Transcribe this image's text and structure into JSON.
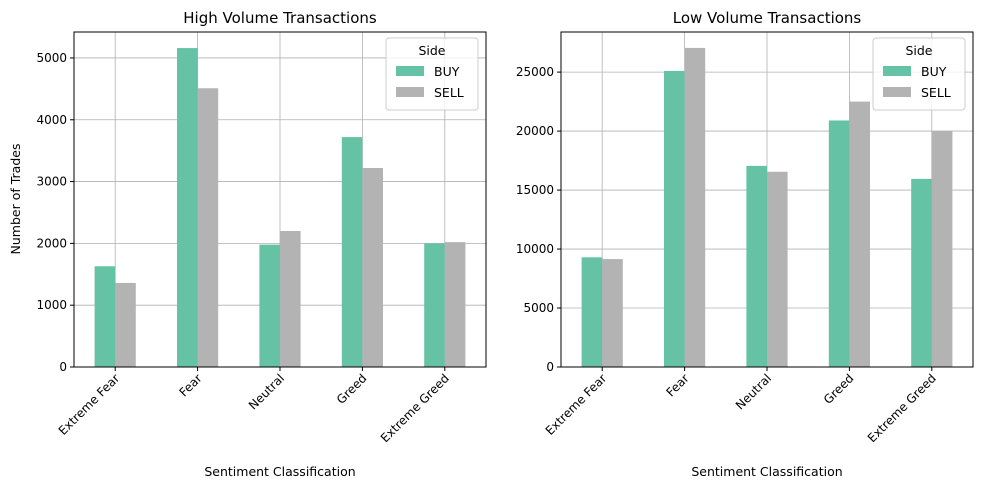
{
  "chart_data": [
    {
      "type": "bar",
      "title": "High Volume Transactions",
      "xlabel": "Sentiment Classification",
      "ylabel": "Number of Trades",
      "categories": [
        "Extreme Fear",
        "Fear",
        "Neutral",
        "Greed",
        "Extreme Greed"
      ],
      "series": [
        {
          "name": "BUY",
          "values": [
            1630,
            5160,
            1980,
            3720,
            2000
          ]
        },
        {
          "name": "SELL",
          "values": [
            1360,
            4510,
            2200,
            3220,
            2020
          ]
        }
      ],
      "ylim": [
        0,
        5420
      ],
      "yticks": [
        0,
        1000,
        2000,
        3000,
        4000,
        5000
      ],
      "grid": true,
      "legend": {
        "title": "Side",
        "location": "top-right"
      }
    },
    {
      "type": "bar",
      "title": "Low Volume Transactions",
      "xlabel": "Sentiment Classification",
      "ylabel": "",
      "categories": [
        "Extreme Fear",
        "Fear",
        "Neutral",
        "Greed",
        "Extreme Greed"
      ],
      "series": [
        {
          "name": "BUY",
          "values": [
            9300,
            25100,
            17050,
            20900,
            15950
          ]
        },
        {
          "name": "SELL",
          "values": [
            9150,
            27050,
            16550,
            22500,
            20000
          ]
        }
      ],
      "ylim": [
        0,
        28400
      ],
      "yticks": [
        0,
        5000,
        10000,
        15000,
        20000,
        25000
      ],
      "grid": true,
      "legend": {
        "title": "Side",
        "location": "top-right"
      }
    }
  ],
  "colors": {
    "BUY": "#66c2a5",
    "SELL": "#b3b3b3",
    "grid": "#b0b0b0",
    "axis": "#000000"
  }
}
